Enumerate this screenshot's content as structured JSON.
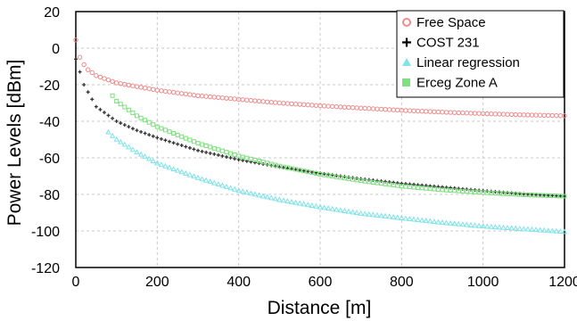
{
  "chart_data": {
    "type": "scatter",
    "title": "",
    "xlabel": "Distance [m]",
    "ylabel": "Power Levels [dBm]",
    "xlim": [
      0,
      1200
    ],
    "ylim": [
      -120,
      20
    ],
    "x_ticks": [
      "0",
      "200",
      "400",
      "600",
      "800",
      "1000",
      "1200"
    ],
    "y_ticks": [
      "20",
      "0",
      "-20",
      "-40",
      "-60",
      "-80",
      "-100",
      "-120"
    ],
    "grid": true,
    "legend_position": "top-right",
    "series": [
      {
        "name": "Free Space",
        "marker": "circle",
        "color": "#ef8a8a",
        "x_range": [
          0,
          1200
        ],
        "step": 10,
        "points": [
          [
            0,
            4.5
          ],
          [
            10,
            -5
          ],
          [
            25,
            -11
          ],
          [
            50,
            -15
          ],
          [
            100,
            -19
          ],
          [
            200,
            -23
          ],
          [
            300,
            -26
          ],
          [
            400,
            -28
          ],
          [
            500,
            -30
          ],
          [
            600,
            -31.5
          ],
          [
            700,
            -32.8
          ],
          [
            800,
            -34
          ],
          [
            900,
            -35
          ],
          [
            1000,
            -35.8
          ],
          [
            1100,
            -36.5
          ],
          [
            1200,
            -37
          ]
        ]
      },
      {
        "name": "COST 231",
        "marker": "plus",
        "color": "#333333",
        "x_range": [
          0,
          1200
        ],
        "step": 10,
        "points": [
          [
            0,
            -6
          ],
          [
            20,
            -20
          ],
          [
            50,
            -32
          ],
          [
            100,
            -40
          ],
          [
            150,
            -45
          ],
          [
            200,
            -49
          ],
          [
            300,
            -56
          ],
          [
            400,
            -61
          ],
          [
            500,
            -65
          ],
          [
            600,
            -68.5
          ],
          [
            700,
            -71.5
          ],
          [
            800,
            -74
          ],
          [
            900,
            -76
          ],
          [
            1000,
            -78
          ],
          [
            1100,
            -79.8
          ],
          [
            1200,
            -81
          ]
        ]
      },
      {
        "name": "Linear regression",
        "marker": "triangle",
        "color": "#7fe3e8",
        "x_range": [
          80,
          1200
        ],
        "step": 10,
        "points": [
          [
            80,
            -46
          ],
          [
            100,
            -50
          ],
          [
            150,
            -57
          ],
          [
            200,
            -63
          ],
          [
            300,
            -71
          ],
          [
            400,
            -78
          ],
          [
            500,
            -83
          ],
          [
            600,
            -87
          ],
          [
            700,
            -90.5
          ],
          [
            800,
            -93
          ],
          [
            900,
            -95.5
          ],
          [
            1000,
            -97.5
          ],
          [
            1100,
            -99
          ],
          [
            1200,
            -100.5
          ]
        ]
      },
      {
        "name": "Erceg Zone A",
        "marker": "square",
        "color": "#7ee07e",
        "x_range": [
          90,
          1200
        ],
        "step": 10,
        "points": [
          [
            90,
            -26
          ],
          [
            100,
            -29
          ],
          [
            150,
            -37
          ],
          [
            200,
            -43
          ],
          [
            300,
            -52
          ],
          [
            400,
            -59
          ],
          [
            500,
            -64.5
          ],
          [
            600,
            -69
          ],
          [
            700,
            -72.5
          ],
          [
            800,
            -75.5
          ],
          [
            900,
            -77.5
          ],
          [
            1000,
            -79
          ],
          [
            1100,
            -80.2
          ],
          [
            1200,
            -81
          ]
        ]
      }
    ]
  }
}
